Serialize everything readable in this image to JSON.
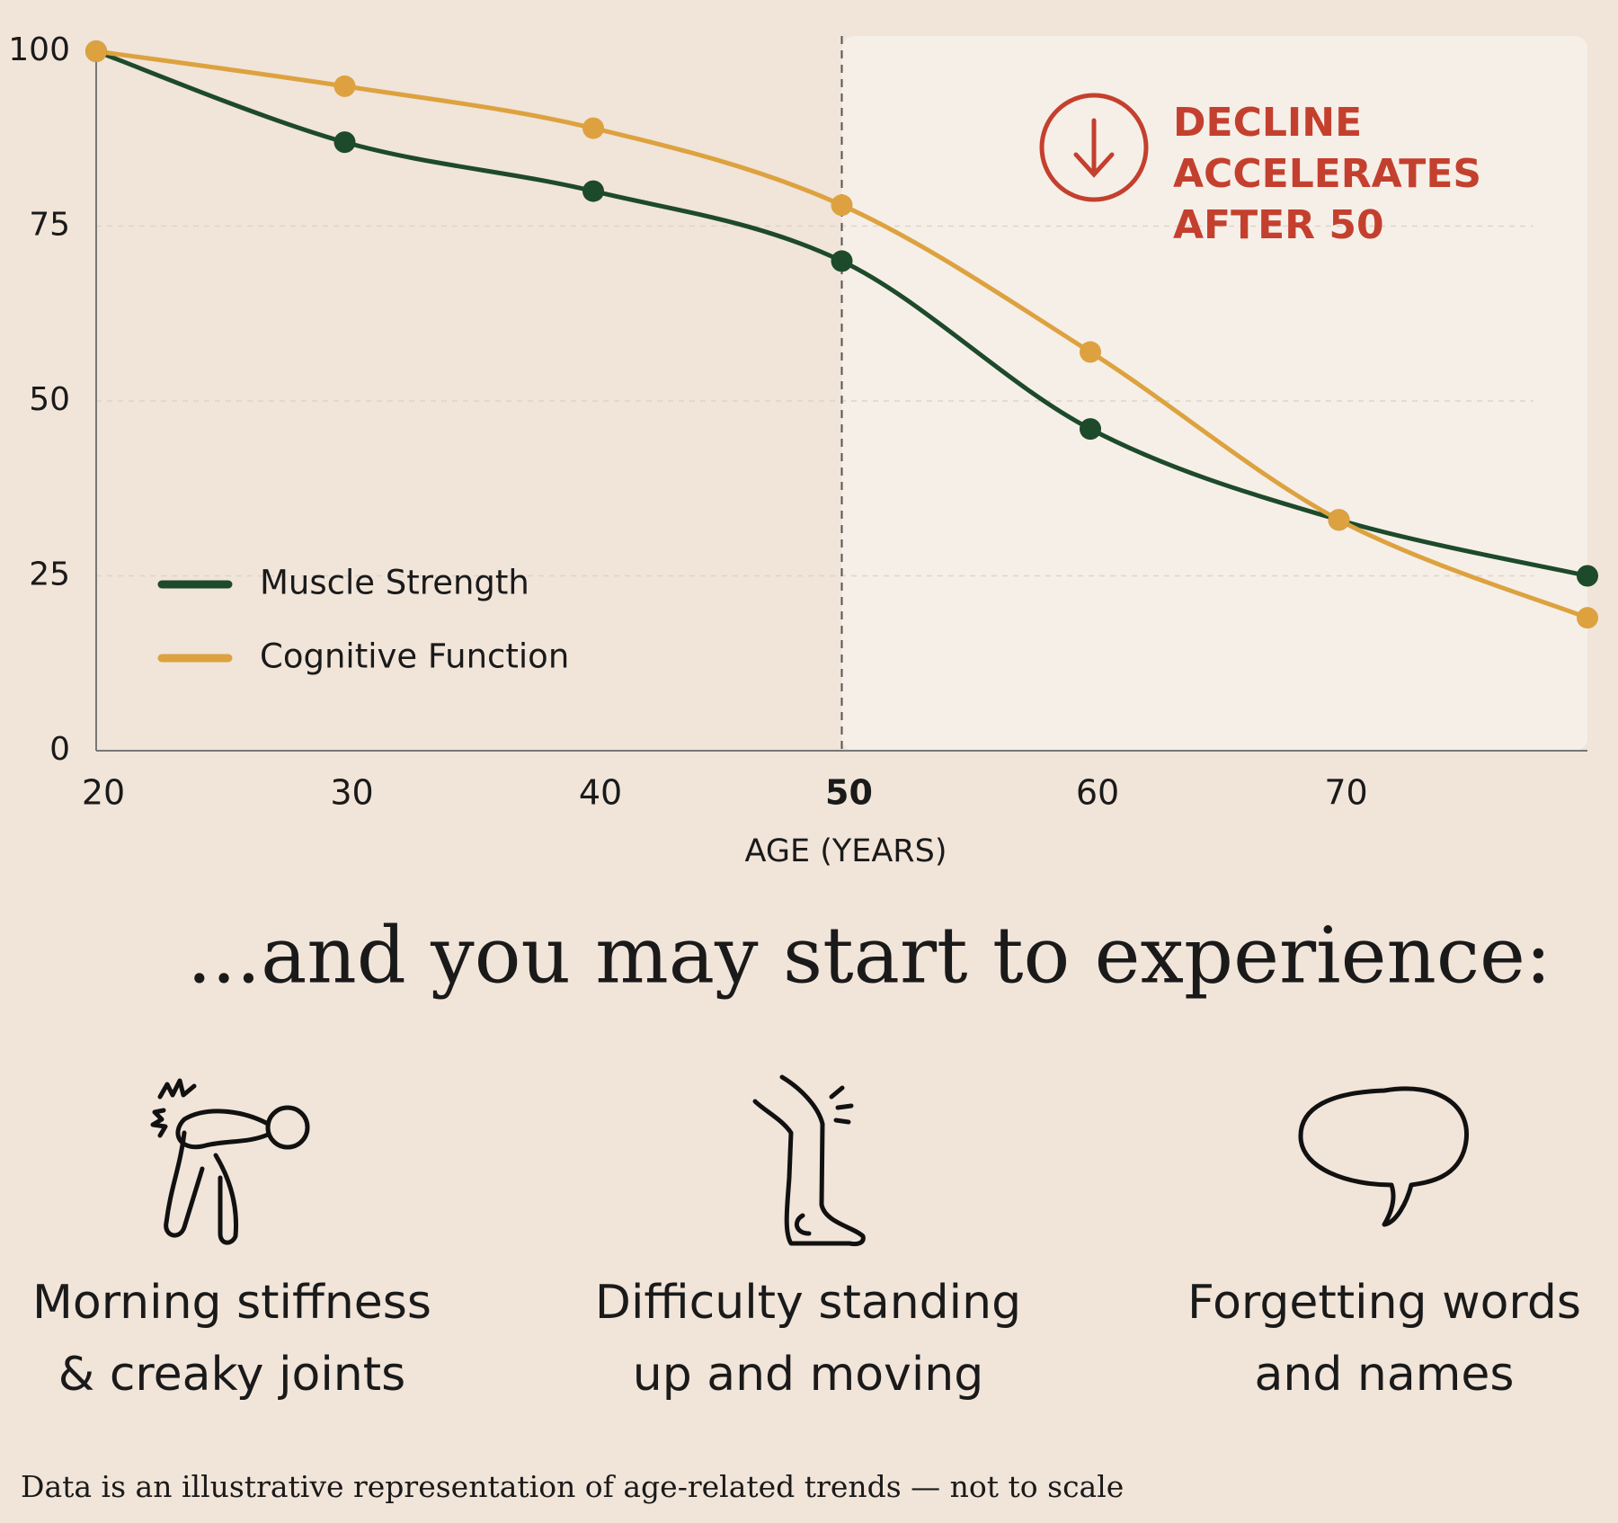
{
  "chart_data": {
    "type": "line",
    "x": [
      20,
      30,
      40,
      50,
      60,
      70,
      80
    ],
    "series": [
      {
        "name": "Muscle Strength",
        "color": "#1d4a2a",
        "values": [
          100,
          87,
          80,
          70,
          46,
          33,
          25
        ]
      },
      {
        "name": "Cognitive Function",
        "color": "#dda23f",
        "values": [
          100,
          95,
          89,
          78,
          57,
          33,
          19
        ]
      }
    ],
    "xlim": [
      20,
      80
    ],
    "xticks": [
      20,
      30,
      40,
      50,
      60,
      70
    ],
    "ylim": [
      0,
      100
    ],
    "yticks": [
      0,
      25,
      50,
      75,
      100
    ],
    "x_label": "AGE (YEARS)",
    "grid": true,
    "legend": "lower-left",
    "reference_x": 50,
    "annotation": [
      "DECLINE",
      "ACCELERATES",
      "AFTER 50"
    ],
    "annotation_color": "#c4402e"
  },
  "heading": "...and you may start to experience:",
  "items": [
    {
      "lines": [
        "Morning stiffness",
        "& creaky joints"
      ]
    },
    {
      "lines": [
        "Difficulty standing",
        "up and moving"
      ]
    },
    {
      "lines": [
        "Forgetting words",
        "and names"
      ]
    }
  ],
  "footnote": "Data is an illustrative representation of age-related trends — not to scale"
}
